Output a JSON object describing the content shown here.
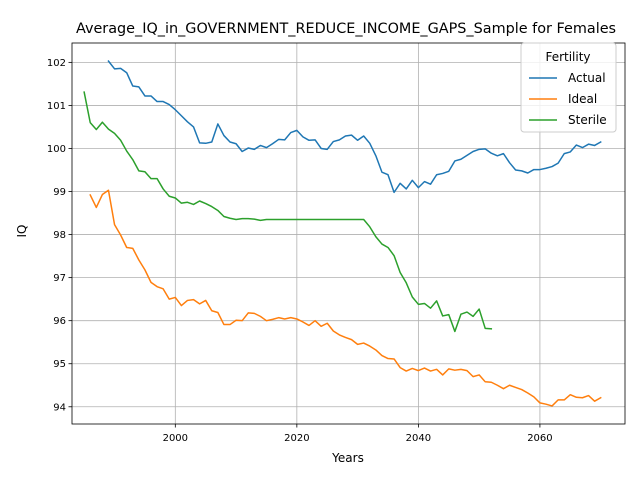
{
  "chart_data": {
    "type": "line",
    "title": "Average_IQ_in_GOVERNMENT_REDUCE_INCOME_GAPS_Sample for Females",
    "xlabel": "Years",
    "ylabel": "IQ",
    "xlim": [
      1983,
      2074
    ],
    "ylim": [
      93.6,
      102.45
    ],
    "xticks": [
      2000,
      2020,
      2040,
      2060
    ],
    "yticks": [
      94,
      95,
      96,
      97,
      98,
      99,
      100,
      101,
      102
    ],
    "grid": true,
    "legend": {
      "title": "Fertility",
      "position": "top-right"
    },
    "series": [
      {
        "name": "Actual",
        "color": "#1f77b4",
        "x": [
          1989,
          1990,
          1991,
          1992,
          1993,
          1994,
          1995,
          1996,
          1997,
          1998,
          1999,
          2000,
          2001,
          2002,
          2003,
          2004,
          2005,
          2006,
          2007,
          2008,
          2009,
          2010,
          2011,
          2012,
          2013,
          2014,
          2015,
          2016,
          2017,
          2018,
          2019,
          2020,
          2021,
          2022,
          2023,
          2024,
          2025,
          2026,
          2027,
          2028,
          2029,
          2030,
          2031,
          2032,
          2033,
          2034,
          2035,
          2036,
          2037,
          2038,
          2039,
          2040,
          2041,
          2042,
          2043,
          2044,
          2045,
          2046,
          2047,
          2048,
          2049,
          2050,
          2051,
          2052,
          2053,
          2054,
          2055,
          2056,
          2057,
          2058,
          2059,
          2060,
          2061,
          2062,
          2063,
          2064,
          2065,
          2066,
          2067,
          2068,
          2069,
          2070
        ],
        "y": [
          102.03,
          101.85,
          101.86,
          101.76,
          101.45,
          101.43,
          101.22,
          101.22,
          101.09,
          101.09,
          101.02,
          100.9,
          100.76,
          100.62,
          100.5,
          100.13,
          100.12,
          100.15,
          100.57,
          100.3,
          100.15,
          100.11,
          99.93,
          100.01,
          99.98,
          100.07,
          100.02,
          100.11,
          100.21,
          100.2,
          100.37,
          100.42,
          100.27,
          100.19,
          100.2,
          100.0,
          99.98,
          100.16,
          100.2,
          100.29,
          100.31,
          100.19,
          100.29,
          100.12,
          99.83,
          99.45,
          99.39,
          98.98,
          99.19,
          99.06,
          99.26,
          99.09,
          99.23,
          99.17,
          99.39,
          99.42,
          99.47,
          99.71,
          99.75,
          99.84,
          99.93,
          99.98,
          99.99,
          99.89,
          99.83,
          99.88,
          99.67,
          99.5,
          99.48,
          99.43,
          99.51,
          99.51,
          99.54,
          99.58,
          99.66,
          99.88,
          99.92,
          100.08,
          100.02,
          100.1,
          100.07,
          100.15
        ]
      },
      {
        "name": "Ideal",
        "color": "#ff7f0e",
        "x": [
          1986,
          1987,
          1988,
          1989,
          1990,
          1991,
          1992,
          1993,
          1994,
          1995,
          1996,
          1997,
          1998,
          1999,
          2000,
          2001,
          2002,
          2003,
          2004,
          2005,
          2006,
          2007,
          2008,
          2009,
          2010,
          2011,
          2012,
          2013,
          2014,
          2015,
          2016,
          2017,
          2018,
          2019,
          2020,
          2021,
          2022,
          2023,
          2024,
          2025,
          2026,
          2027,
          2028,
          2029,
          2030,
          2031,
          2032,
          2033,
          2034,
          2035,
          2036,
          2037,
          2038,
          2039,
          2040,
          2041,
          2042,
          2043,
          2044,
          2045,
          2046,
          2047,
          2048,
          2049,
          2050,
          2051,
          2052,
          2053,
          2054,
          2055,
          2056,
          2057,
          2058,
          2059,
          2060,
          2061,
          2062,
          2063,
          2064,
          2065,
          2066,
          2067,
          2068,
          2069,
          2070
        ],
        "y": [
          98.92,
          98.63,
          98.93,
          99.03,
          98.23,
          97.99,
          97.7,
          97.68,
          97.41,
          97.18,
          96.89,
          96.79,
          96.74,
          96.5,
          96.54,
          96.35,
          96.47,
          96.49,
          96.39,
          96.47,
          96.23,
          96.19,
          95.91,
          95.91,
          96.01,
          96.0,
          96.18,
          96.17,
          96.1,
          96.0,
          96.03,
          96.07,
          96.04,
          96.07,
          96.04,
          95.97,
          95.89,
          96.0,
          95.87,
          95.94,
          95.76,
          95.67,
          95.61,
          95.56,
          95.45,
          95.48,
          95.41,
          95.32,
          95.19,
          95.12,
          95.11,
          94.91,
          94.83,
          94.89,
          94.84,
          94.9,
          94.83,
          94.87,
          94.74,
          94.88,
          94.85,
          94.87,
          94.84,
          94.7,
          94.74,
          94.58,
          94.57,
          94.5,
          94.42,
          94.5,
          94.45,
          94.4,
          94.32,
          94.23,
          94.09,
          94.06,
          94.02,
          94.16,
          94.16,
          94.28,
          94.22,
          94.21,
          94.26,
          94.13,
          94.21
        ]
      },
      {
        "name": "Sterile",
        "color": "#2ca02c",
        "x": [
          1985,
          1986,
          1987,
          1988,
          1989,
          1990,
          1991,
          1992,
          1993,
          1994,
          1995,
          1996,
          1997,
          1998,
          1999,
          2000,
          2001,
          2002,
          2003,
          2004,
          2005,
          2006,
          2007,
          2008,
          2009,
          2010,
          2011,
          2012,
          2013,
          2014,
          2015,
          2016,
          2017,
          2018,
          2019,
          2020,
          2021,
          2022,
          2023,
          2024,
          2025,
          2026,
          2027,
          2028,
          2029,
          2030,
          2031,
          2032,
          2033,
          2034,
          2035,
          2036,
          2037,
          2038,
          2039,
          2040,
          2041,
          2042,
          2043,
          2044,
          2045,
          2046,
          2047,
          2048,
          2049,
          2050,
          2051,
          2052
        ],
        "y": [
          101.31,
          100.6,
          100.44,
          100.61,
          100.45,
          100.35,
          100.19,
          99.94,
          99.74,
          99.48,
          99.46,
          99.3,
          99.3,
          99.06,
          98.89,
          98.85,
          98.73,
          98.75,
          98.7,
          98.78,
          98.72,
          98.65,
          98.56,
          98.42,
          98.38,
          98.35,
          98.37,
          98.37,
          98.36,
          98.33,
          98.35,
          98.35,
          98.35,
          98.35,
          98.35,
          98.35,
          98.35,
          98.35,
          98.35,
          98.35,
          98.35,
          98.35,
          98.35,
          98.35,
          98.35,
          98.35,
          98.35,
          98.18,
          97.95,
          97.78,
          97.7,
          97.51,
          97.12,
          96.88,
          96.55,
          96.38,
          96.4,
          96.29,
          96.46,
          96.11,
          96.14,
          95.75,
          96.15,
          96.2,
          96.1,
          96.27,
          95.82,
          95.81
        ]
      }
    ]
  }
}
